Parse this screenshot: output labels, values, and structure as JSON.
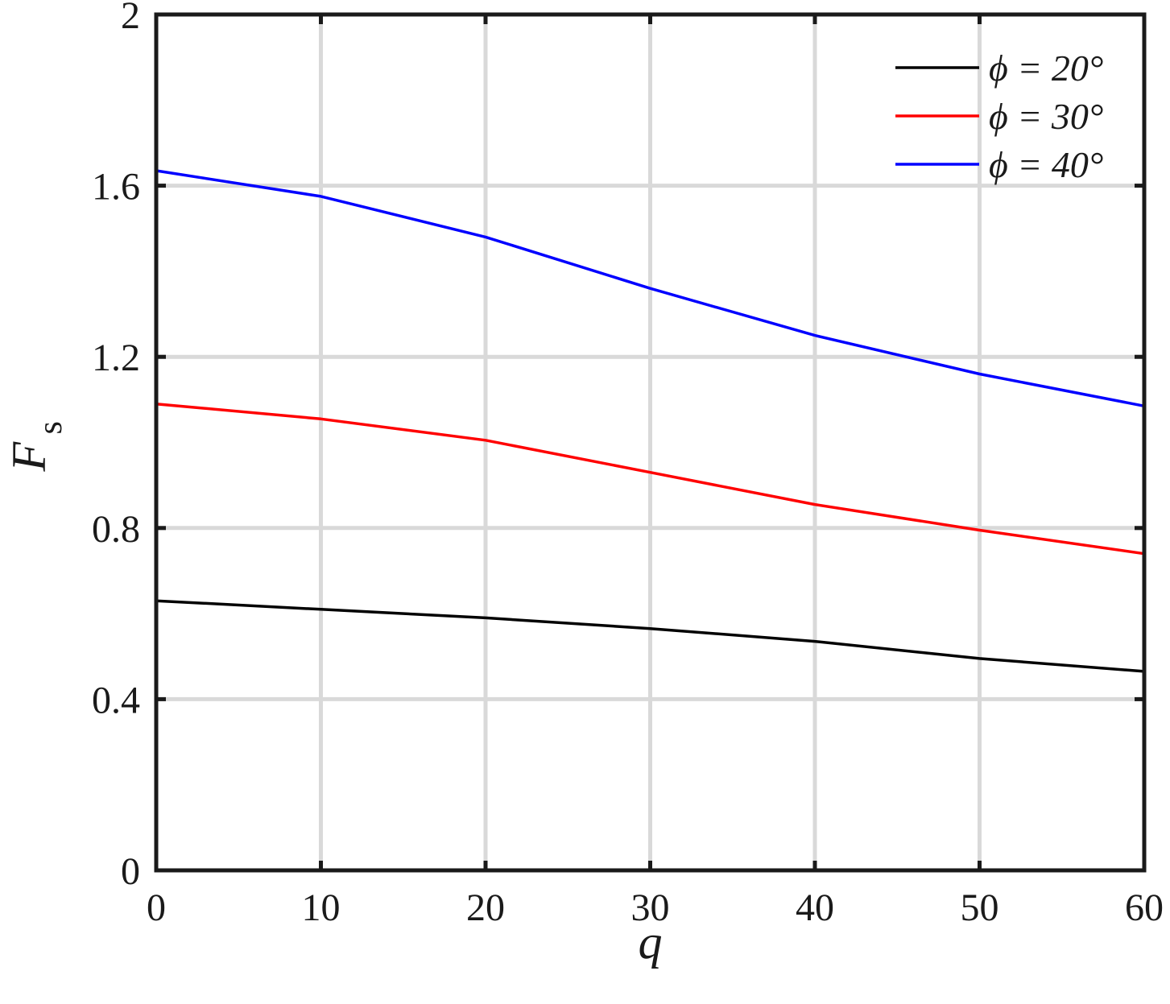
{
  "chart_data": {
    "type": "line",
    "title": "",
    "xlabel": "q",
    "ylabel": "F",
    "ylabel_subscript": "s",
    "xlim": [
      0,
      60
    ],
    "ylim": [
      0,
      2
    ],
    "xticks": [
      0,
      10,
      20,
      30,
      40,
      50,
      60
    ],
    "yticks": [
      0,
      0.4,
      0.8,
      1.2,
      1.6,
      2
    ],
    "xtick_labels": [
      "0",
      "10",
      "20",
      "30",
      "40",
      "50",
      "60"
    ],
    "ytick_labels": [
      "0",
      "0.4",
      "0.8",
      "1.2",
      "1.6",
      "2"
    ],
    "grid": true,
    "legend_position": "top-right",
    "x": [
      0,
      10,
      20,
      30,
      40,
      50,
      60
    ],
    "series": [
      {
        "name": "ϕ = 20°",
        "color": "#000000",
        "values": [
          0.63,
          0.61,
          0.59,
          0.565,
          0.535,
          0.495,
          0.465
        ]
      },
      {
        "name": "ϕ = 30°",
        "color": "#ff0000",
        "values": [
          1.09,
          1.055,
          1.005,
          0.93,
          0.855,
          0.795,
          0.74
        ]
      },
      {
        "name": "ϕ = 40°",
        "color": "#0000ff",
        "values": [
          1.635,
          1.575,
          1.48,
          1.36,
          1.25,
          1.16,
          1.085
        ]
      }
    ]
  }
}
